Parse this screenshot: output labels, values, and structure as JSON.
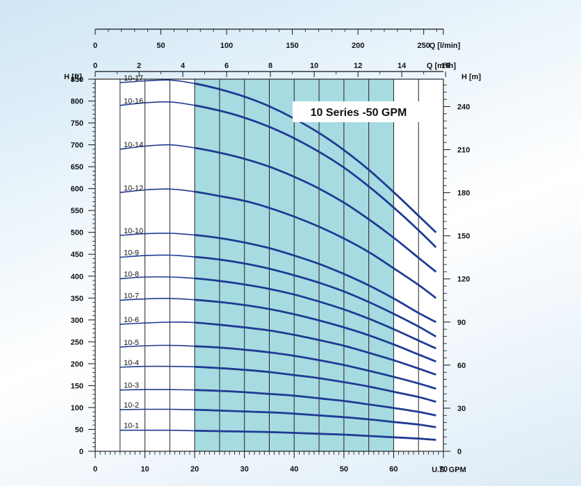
{
  "chart_data": {
    "type": "line",
    "title": "10 Series -50 GPM",
    "xlabel": "U.S. GPM",
    "ylabel_left": "H [ft]",
    "ylabel_right": "H [m]",
    "top_axis_1_label": "Q [l/min]",
    "top_axis_2_label": "Q [m³/h]",
    "xlim": [
      0,
      70
    ],
    "ylim": [
      0,
      850
    ],
    "x_ticks": [
      0,
      10,
      20,
      30,
      40,
      50,
      60,
      70
    ],
    "y_ticks": [
      0,
      50,
      100,
      150,
      200,
      250,
      300,
      350,
      400,
      450,
      500,
      550,
      600,
      650,
      700,
      750,
      800,
      850
    ],
    "y_ticks_m": [
      0,
      30,
      60,
      90,
      120,
      150,
      180,
      210,
      240
    ],
    "top_ticks_lmin": [
      0,
      50,
      100,
      150,
      200,
      250
    ],
    "top_ticks_m3h": [
      0,
      2,
      4,
      6,
      8,
      10,
      12,
      14,
      16
    ],
    "recommended_range_gpm": [
      20,
      60
    ],
    "x": [
      5,
      10,
      15,
      20,
      25,
      30,
      35,
      40,
      45,
      50,
      55,
      60,
      65,
      68.5
    ],
    "series": [
      {
        "name": "10-17",
        "values": [
          842,
          846,
          848,
          840,
          827,
          810,
          788,
          760,
          727,
          688,
          643,
          592,
          538,
          500
        ]
      },
      {
        "name": "10-16",
        "values": [
          790,
          796,
          798,
          790,
          778,
          762,
          741,
          715,
          684,
          648,
          605,
          557,
          505,
          466
        ]
      },
      {
        "name": "10-14",
        "values": [
          690,
          697,
          700,
          693,
          682,
          668,
          650,
          627,
          600,
          568,
          530,
          488,
          442,
          410
        ]
      },
      {
        "name": "10-12",
        "values": [
          591,
          597,
          599,
          593,
          583,
          572,
          556,
          536,
          513,
          486,
          455,
          418,
          380,
          350
        ]
      },
      {
        "name": "10-10",
        "values": [
          493,
          497,
          498,
          494,
          487,
          477,
          464,
          447,
          428,
          405,
          379,
          349,
          316,
          295
        ]
      },
      {
        "name": "10-9",
        "values": [
          443,
          447,
          448,
          444,
          438,
          429,
          417,
          402,
          385,
          365,
          341,
          314,
          285,
          262
        ]
      },
      {
        "name": "10-8",
        "values": [
          394,
          398,
          398,
          395,
          389,
          381,
          371,
          358,
          342,
          324,
          303,
          279,
          253,
          235
        ]
      },
      {
        "name": "10-7",
        "values": [
          345,
          348,
          349,
          346,
          341,
          334,
          325,
          313,
          299,
          283,
          265,
          244,
          221,
          205
        ]
      },
      {
        "name": "10-6",
        "values": [
          290,
          293,
          295,
          294,
          289,
          283,
          276,
          266,
          254,
          241,
          225,
          208,
          189,
          175
        ]
      },
      {
        "name": "10-5",
        "values": [
          238,
          241,
          242,
          240,
          237,
          232,
          226,
          218,
          208,
          197,
          184,
          170,
          155,
          143
        ]
      },
      {
        "name": "10-4",
        "values": [
          192,
          194,
          194,
          193,
          190,
          186,
          181,
          174,
          167,
          158,
          148,
          136,
          124,
          113
        ]
      },
      {
        "name": "10-3",
        "values": [
          140,
          141,
          141,
          140,
          138,
          135,
          131,
          127,
          121,
          115,
          107,
          99,
          90,
          82
        ]
      },
      {
        "name": "10-2",
        "values": [
          95,
          96,
          96,
          95,
          93,
          91,
          89,
          86,
          82,
          78,
          73,
          67,
          61,
          55
        ]
      },
      {
        "name": "10-1",
        "values": [
          48,
          48,
          48,
          47,
          46,
          45,
          44,
          42,
          40,
          38,
          35,
          32,
          29,
          26
        ]
      }
    ],
    "colors": {
      "curve": "#1f3a93",
      "band": "#a6dbe1",
      "grid": "#222222",
      "plot_bg": "#ffffff"
    }
  }
}
